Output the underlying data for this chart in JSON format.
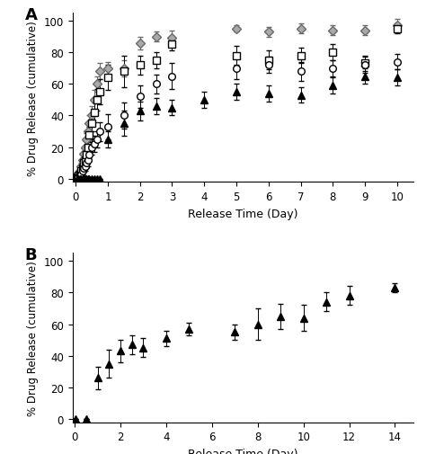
{
  "panel_A": {
    "diamond": {
      "x": [
        0.04,
        0.08,
        0.13,
        0.17,
        0.21,
        0.25,
        0.29,
        0.33,
        0.38,
        0.42,
        0.5,
        0.58,
        0.67,
        0.75,
        1.0,
        1.5,
        2.0,
        2.5,
        3.0,
        5.0,
        6.0,
        7.0,
        8.0,
        9.0,
        10.0
      ],
      "y": [
        1,
        2,
        5,
        8,
        12,
        16,
        20,
        25,
        30,
        35,
        40,
        50,
        60,
        68,
        70,
        70,
        86,
        90,
        89,
        95,
        93,
        95,
        94,
        94,
        97
      ],
      "yerr": [
        0.5,
        1,
        2,
        2,
        3,
        3,
        4,
        4,
        5,
        5,
        6,
        6,
        5,
        5,
        4,
        5,
        4,
        3,
        5,
        2,
        3,
        3,
        3,
        3,
        4
      ]
    },
    "square": {
      "x": [
        0.04,
        0.08,
        0.13,
        0.17,
        0.21,
        0.25,
        0.29,
        0.33,
        0.38,
        0.42,
        0.5,
        0.58,
        0.67,
        0.75,
        1.0,
        1.5,
        2.0,
        2.5,
        3.0,
        5.0,
        6.0,
        7.0,
        8.0,
        9.0,
        10.0
      ],
      "y": [
        1,
        2,
        3,
        5,
        7,
        10,
        12,
        15,
        20,
        28,
        35,
        42,
        50,
        55,
        64,
        68,
        72,
        75,
        85,
        78,
        75,
        78,
        80,
        73,
        95
      ],
      "yerr": [
        0.5,
        1,
        1,
        2,
        2,
        3,
        3,
        4,
        4,
        5,
        5,
        6,
        7,
        8,
        8,
        10,
        6,
        5,
        4,
        6,
        6,
        5,
        5,
        5,
        3
      ]
    },
    "circle": {
      "x": [
        0.04,
        0.08,
        0.13,
        0.17,
        0.21,
        0.25,
        0.29,
        0.33,
        0.38,
        0.42,
        0.5,
        0.58,
        0.67,
        0.75,
        1.0,
        1.5,
        2.0,
        2.5,
        3.0,
        5.0,
        6.0,
        7.0,
        8.0,
        9.0,
        10.0
      ],
      "y": [
        1,
        1,
        2,
        3,
        5,
        7,
        8,
        10,
        12,
        15,
        20,
        22,
        25,
        30,
        33,
        40,
        52,
        60,
        65,
        70,
        72,
        68,
        70,
        72,
        74
      ],
      "yerr": [
        0.5,
        0.5,
        1,
        1,
        2,
        2,
        3,
        3,
        4,
        4,
        5,
        5,
        5,
        6,
        8,
        8,
        7,
        6,
        8,
        7,
        5,
        6,
        5,
        5,
        5
      ]
    },
    "triangle": {
      "x": [
        0.04,
        0.08,
        0.13,
        0.17,
        0.21,
        0.25,
        0.29,
        0.33,
        0.38,
        0.42,
        0.5,
        0.58,
        0.67,
        0.75,
        1.0,
        1.5,
        2.0,
        2.5,
        3.0,
        4.0,
        5.0,
        6.0,
        7.0,
        8.0,
        9.0,
        10.0
      ],
      "y": [
        0,
        0,
        0,
        0,
        0,
        0,
        0,
        0,
        0,
        0,
        0,
        0,
        0,
        0,
        25,
        35,
        43,
        46,
        45,
        50,
        55,
        54,
        53,
        59,
        65,
        64
      ],
      "yerr": [
        0,
        0,
        0,
        0,
        0,
        0,
        0,
        0,
        0,
        0,
        0,
        0,
        0,
        0,
        5,
        8,
        6,
        5,
        5,
        5,
        5,
        5,
        5,
        5,
        5,
        5
      ]
    }
  },
  "panel_B": {
    "triangle": {
      "x": [
        0.04,
        0.5,
        1.0,
        1.5,
        2.0,
        2.5,
        3.0,
        4.0,
        5.0,
        7.0,
        8.0,
        9.0,
        10.0,
        11.0,
        12.0,
        14.0
      ],
      "y": [
        0,
        0,
        26,
        35,
        43,
        47,
        45,
        51,
        57,
        55,
        60,
        65,
        64,
        74,
        78,
        83
      ],
      "yerr": [
        0,
        0,
        7,
        9,
        7,
        6,
        6,
        5,
        4,
        5,
        10,
        8,
        8,
        6,
        6,
        3
      ]
    }
  },
  "xlim_A": [
    -0.1,
    10.5
  ],
  "xlim_B": [
    -0.1,
    14.8
  ],
  "ylim": [
    -2,
    105
  ],
  "xticks_A": [
    0,
    1,
    2,
    3,
    4,
    5,
    6,
    7,
    8,
    9,
    10
  ],
  "xticks_B": [
    0,
    2,
    4,
    6,
    8,
    10,
    12,
    14
  ],
  "yticks": [
    0,
    20,
    40,
    60,
    80,
    100
  ],
  "xlabel": "Release Time (Day)",
  "ylabel": "% Drug Release (cumulative)",
  "label_A": "A",
  "label_B": "B"
}
